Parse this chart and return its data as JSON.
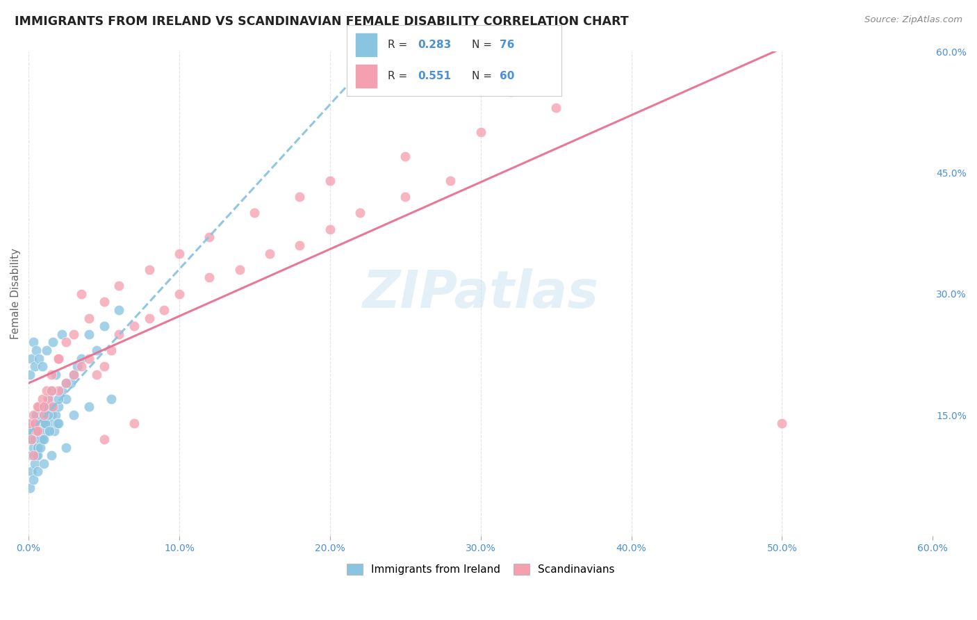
{
  "title": "IMMIGRANTS FROM IRELAND VS SCANDINAVIAN FEMALE DISABILITY CORRELATION CHART",
  "source": "Source: ZipAtlas.com",
  "ylabel": "Female Disability",
  "watermark": "ZIPatlas",
  "xlim": [
    0.0,
    0.6
  ],
  "ylim": [
    0.0,
    0.6
  ],
  "xticks": [
    0.0,
    0.1,
    0.2,
    0.3,
    0.4,
    0.5,
    0.6
  ],
  "yticks_right": [
    0.15,
    0.3,
    0.45,
    0.6
  ],
  "legend_label1": "Immigrants from Ireland",
  "legend_label2": "Scandinavians",
  "R1": 0.283,
  "N1": 76,
  "R2": 0.551,
  "N2": 60,
  "color_ireland": "#89C4E1",
  "color_scand": "#F4A0B0",
  "color_ireland_line": "#89C4E1",
  "color_scand_line": "#E87090",
  "background_color": "#ffffff",
  "grid_color": "#dddddd",
  "title_color": "#222222",
  "source_color": "#888888",
  "ireland_x": [
    0.001,
    0.002,
    0.003,
    0.004,
    0.005,
    0.006,
    0.007,
    0.008,
    0.009,
    0.01,
    0.011,
    0.012,
    0.013,
    0.014,
    0.015,
    0.016,
    0.017,
    0.018,
    0.019,
    0.02,
    0.022,
    0.025,
    0.028,
    0.03,
    0.032,
    0.035,
    0.04,
    0.045,
    0.05,
    0.06,
    0.002,
    0.003,
    0.004,
    0.005,
    0.006,
    0.008,
    0.01,
    0.012,
    0.015,
    0.018,
    0.001,
    0.003,
    0.005,
    0.007,
    0.009,
    0.011,
    0.013,
    0.015,
    0.02,
    0.025,
    0.002,
    0.004,
    0.006,
    0.008,
    0.01,
    0.014,
    0.02,
    0.03,
    0.04,
    0.055,
    0.001,
    0.002,
    0.003,
    0.004,
    0.005,
    0.007,
    0.009,
    0.012,
    0.016,
    0.022,
    0.001,
    0.003,
    0.006,
    0.01,
    0.015,
    0.025
  ],
  "ireland_y": [
    0.12,
    0.13,
    0.14,
    0.13,
    0.15,
    0.12,
    0.14,
    0.13,
    0.16,
    0.15,
    0.14,
    0.13,
    0.16,
    0.17,
    0.15,
    0.14,
    0.13,
    0.15,
    0.14,
    0.16,
    0.18,
    0.17,
    0.19,
    0.2,
    0.21,
    0.22,
    0.25,
    0.23,
    0.26,
    0.28,
    0.1,
    0.11,
    0.12,
    0.1,
    0.11,
    0.12,
    0.14,
    0.16,
    0.18,
    0.2,
    0.13,
    0.14,
    0.15,
    0.13,
    0.12,
    0.14,
    0.15,
    0.16,
    0.17,
    0.19,
    0.08,
    0.09,
    0.1,
    0.11,
    0.12,
    0.13,
    0.14,
    0.15,
    0.16,
    0.17,
    0.2,
    0.22,
    0.24,
    0.21,
    0.23,
    0.22,
    0.21,
    0.23,
    0.24,
    0.25,
    0.06,
    0.07,
    0.08,
    0.09,
    0.1,
    0.11
  ],
  "scand_x": [
    0.001,
    0.003,
    0.005,
    0.007,
    0.01,
    0.013,
    0.016,
    0.02,
    0.025,
    0.03,
    0.035,
    0.04,
    0.045,
    0.05,
    0.055,
    0.06,
    0.07,
    0.08,
    0.09,
    0.1,
    0.12,
    0.14,
    0.16,
    0.18,
    0.2,
    0.22,
    0.25,
    0.28,
    0.3,
    0.32,
    0.002,
    0.004,
    0.006,
    0.009,
    0.012,
    0.015,
    0.02,
    0.03,
    0.04,
    0.05,
    0.06,
    0.08,
    0.1,
    0.12,
    0.15,
    0.18,
    0.2,
    0.25,
    0.3,
    0.35,
    0.003,
    0.006,
    0.01,
    0.015,
    0.02,
    0.025,
    0.035,
    0.05,
    0.07,
    0.5
  ],
  "scand_y": [
    0.14,
    0.15,
    0.13,
    0.16,
    0.15,
    0.17,
    0.16,
    0.18,
    0.19,
    0.2,
    0.21,
    0.22,
    0.2,
    0.21,
    0.23,
    0.25,
    0.26,
    0.27,
    0.28,
    0.3,
    0.32,
    0.33,
    0.35,
    0.36,
    0.38,
    0.4,
    0.42,
    0.44,
    0.58,
    0.55,
    0.12,
    0.14,
    0.16,
    0.17,
    0.18,
    0.2,
    0.22,
    0.25,
    0.27,
    0.29,
    0.31,
    0.33,
    0.35,
    0.37,
    0.4,
    0.42,
    0.44,
    0.47,
    0.5,
    0.53,
    0.1,
    0.13,
    0.16,
    0.18,
    0.22,
    0.24,
    0.3,
    0.12,
    0.14,
    0.14
  ]
}
